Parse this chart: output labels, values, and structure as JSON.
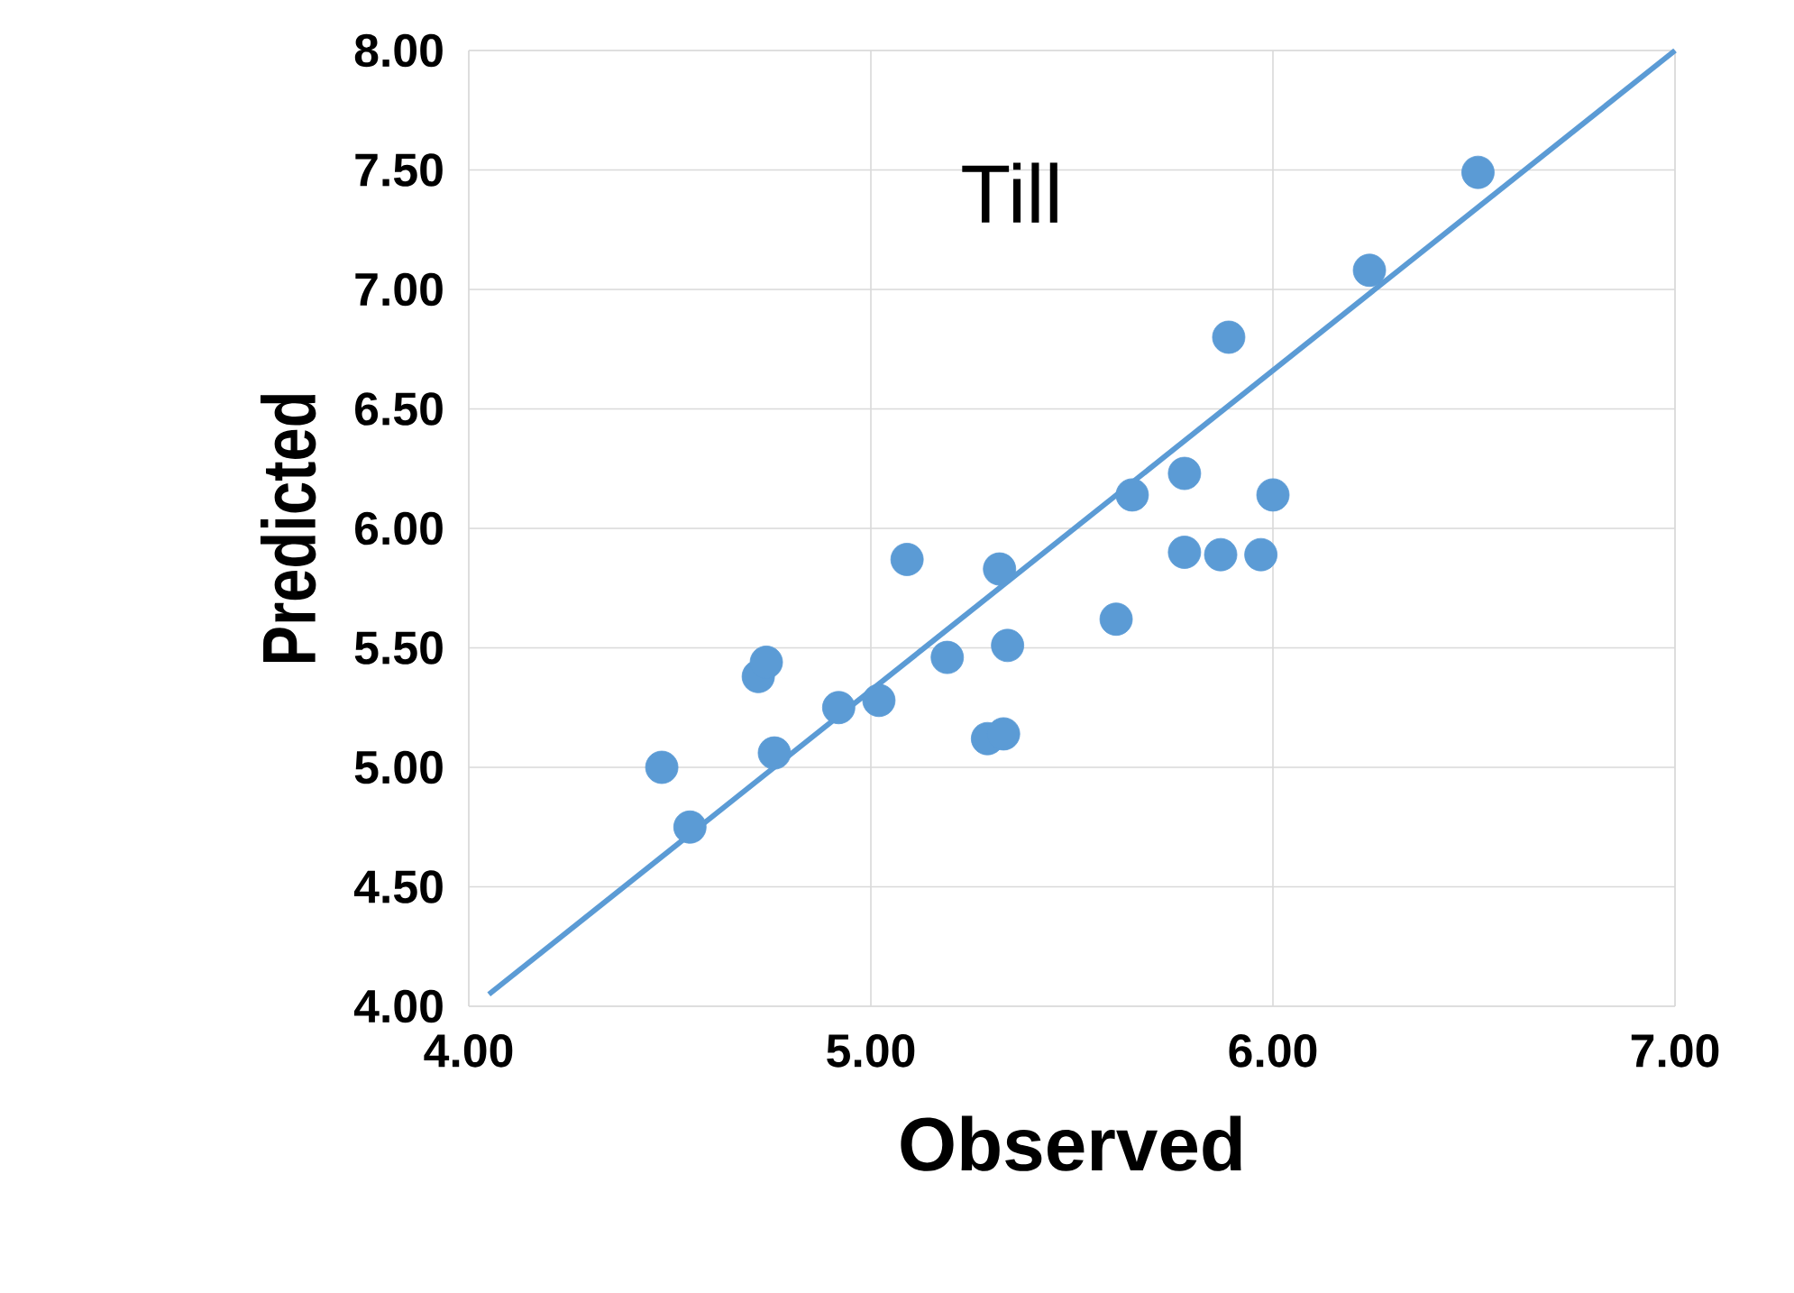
{
  "chart_data": {
    "type": "scatter",
    "title": "Till",
    "xlabel": "Observed",
    "ylabel": "Predicted",
    "xlim": [
      4,
      7
    ],
    "ylim": [
      4,
      8
    ],
    "xticks": [
      {
        "value": 4,
        "label": "4.00"
      },
      {
        "value": 5,
        "label": "5.00"
      },
      {
        "value": 6,
        "label": "6.00"
      },
      {
        "value": 7,
        "label": "7.00"
      }
    ],
    "yticks": [
      {
        "value": 4,
        "label": "4.00"
      },
      {
        "value": 4.5,
        "label": "4.50"
      },
      {
        "value": 5,
        "label": "5.00"
      },
      {
        "value": 5.5,
        "label": "5.50"
      },
      {
        "value": 6,
        "label": "6.00"
      },
      {
        "value": 6.5,
        "label": "6.50"
      },
      {
        "value": 7,
        "label": "7.00"
      },
      {
        "value": 7.5,
        "label": "7.50"
      },
      {
        "value": 8,
        "label": "8.00"
      }
    ],
    "grid": true,
    "marker": "circle",
    "series": [
      {
        "color": "#5b9bd5",
        "x": [
          4.48,
          4.55,
          4.72,
          4.74,
          4.76,
          4.92,
          5.02,
          5.09,
          5.19,
          5.29,
          5.33,
          5.34,
          5.32,
          5.61,
          5.65,
          5.78,
          5.78,
          5.87,
          5.97,
          6.0,
          5.89,
          6.24,
          6.51
        ],
        "values": [
          5.0,
          4.75,
          5.38,
          5.44,
          5.06,
          5.25,
          5.28,
          5.87,
          5.46,
          5.12,
          5.14,
          5.51,
          5.83,
          5.62,
          6.14,
          6.23,
          5.9,
          5.89,
          5.89,
          6.14,
          6.8,
          7.08,
          7.49
        ]
      },
      {
        "type": "line",
        "color": "#5b9bd5",
        "marker": "none",
        "line_style": "solid",
        "x": [
          4.05,
          7.0
        ],
        "values": [
          4.05,
          8.0
        ]
      }
    ]
  }
}
